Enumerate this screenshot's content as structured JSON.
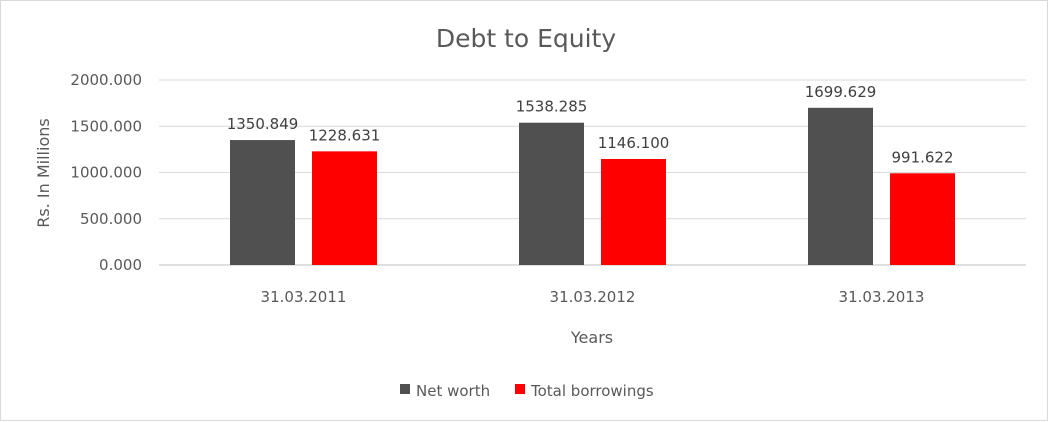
{
  "chart_data": {
    "type": "bar",
    "title": "Debt to Equity",
    "xlabel": "Years",
    "ylabel": "Rs. In Millions",
    "categories": [
      "31.03.2011",
      "31.03.2012",
      "31.03.2013"
    ],
    "series": [
      {
        "name": "Net worth",
        "color": "#505050",
        "values": [
          1350.849,
          1538.285,
          1699.629
        ],
        "labels": [
          "1350.849",
          "1538.285",
          "1699.629"
        ]
      },
      {
        "name": "Total borrowings",
        "color": "#ff0000",
        "values": [
          1228.631,
          1146.1,
          991.622
        ],
        "labels": [
          "1228.631",
          "1146.100",
          "991.622"
        ]
      }
    ],
    "ylim": [
      0,
      2000
    ],
    "yticks": [
      "0.000",
      "500.000",
      "1000.000",
      "1500.000",
      "2000.000"
    ],
    "grid": true,
    "legend_position": "bottom"
  }
}
